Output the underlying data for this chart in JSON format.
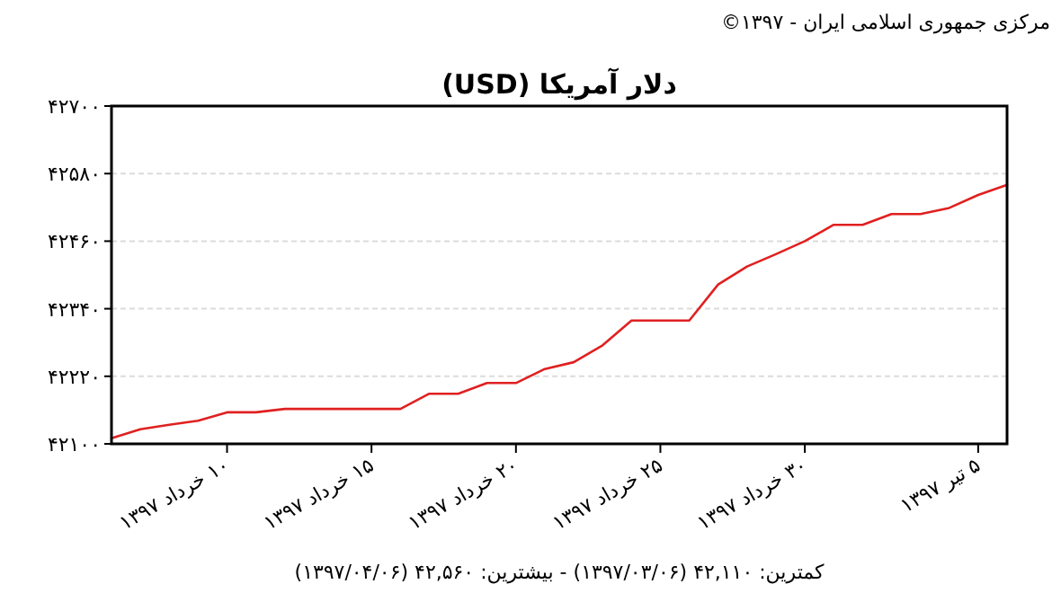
{
  "chart_data": {
    "type": "line",
    "title": "دلار آمریکا (USD)",
    "annotations": [
      "مرکزی جمهوری اسلامی ایران - ۱۳۹۷©",
      "کمترین: ۴۲,۱۱۰ (۱۳۹۷/۰۳/۰۶) - بیشترین: ۴۲,۵۶۰ (۱۳۹۷/۰۴/۰۶)"
    ],
    "categories": [
      null,
      null,
      null,
      null,
      "۱۰ خرداد ۱۳۹۷",
      null,
      null,
      null,
      null,
      "۱۵ خرداد ۱۳۹۷",
      null,
      null,
      null,
      null,
      "۲۰ خرداد ۱۳۹۷",
      null,
      null,
      null,
      null,
      "۲۵ خرداد ۱۳۹۷",
      null,
      null,
      null,
      null,
      "۳۰ خرداد ۱۳۹۷",
      null,
      null,
      null,
      null,
      null,
      "۵ تیر ۱۳۹۷",
      null
    ],
    "series": [
      {
        "color": "#e02020",
        "values": [
          42110,
          42126,
          42134,
          42141,
          42156,
          42156,
          42162,
          42162,
          42162,
          42162,
          42162,
          42189,
          42189,
          42208,
          42208,
          42233,
          42245,
          42275,
          42319,
          42319,
          42319,
          42383,
          42415,
          42437,
          42460,
          42489,
          42489,
          42508,
          42508,
          42519,
          42542,
          42560
        ]
      }
    ],
    "ylim": [
      42100,
      42700
    ],
    "yticks": [
      {
        "value": 42100,
        "label": "۴۲۱۰۰"
      },
      {
        "value": 42220,
        "label": "۴۲۲۲۰"
      },
      {
        "value": 42340,
        "label": "۴۲۳۴۰"
      },
      {
        "value": 42460,
        "label": "۴۲۴۶۰"
      },
      {
        "value": 42580,
        "label": "۴۲۵۸۰"
      },
      {
        "value": 42700,
        "label": "۴۲۷۰۰"
      }
    ],
    "grid": "y"
  }
}
